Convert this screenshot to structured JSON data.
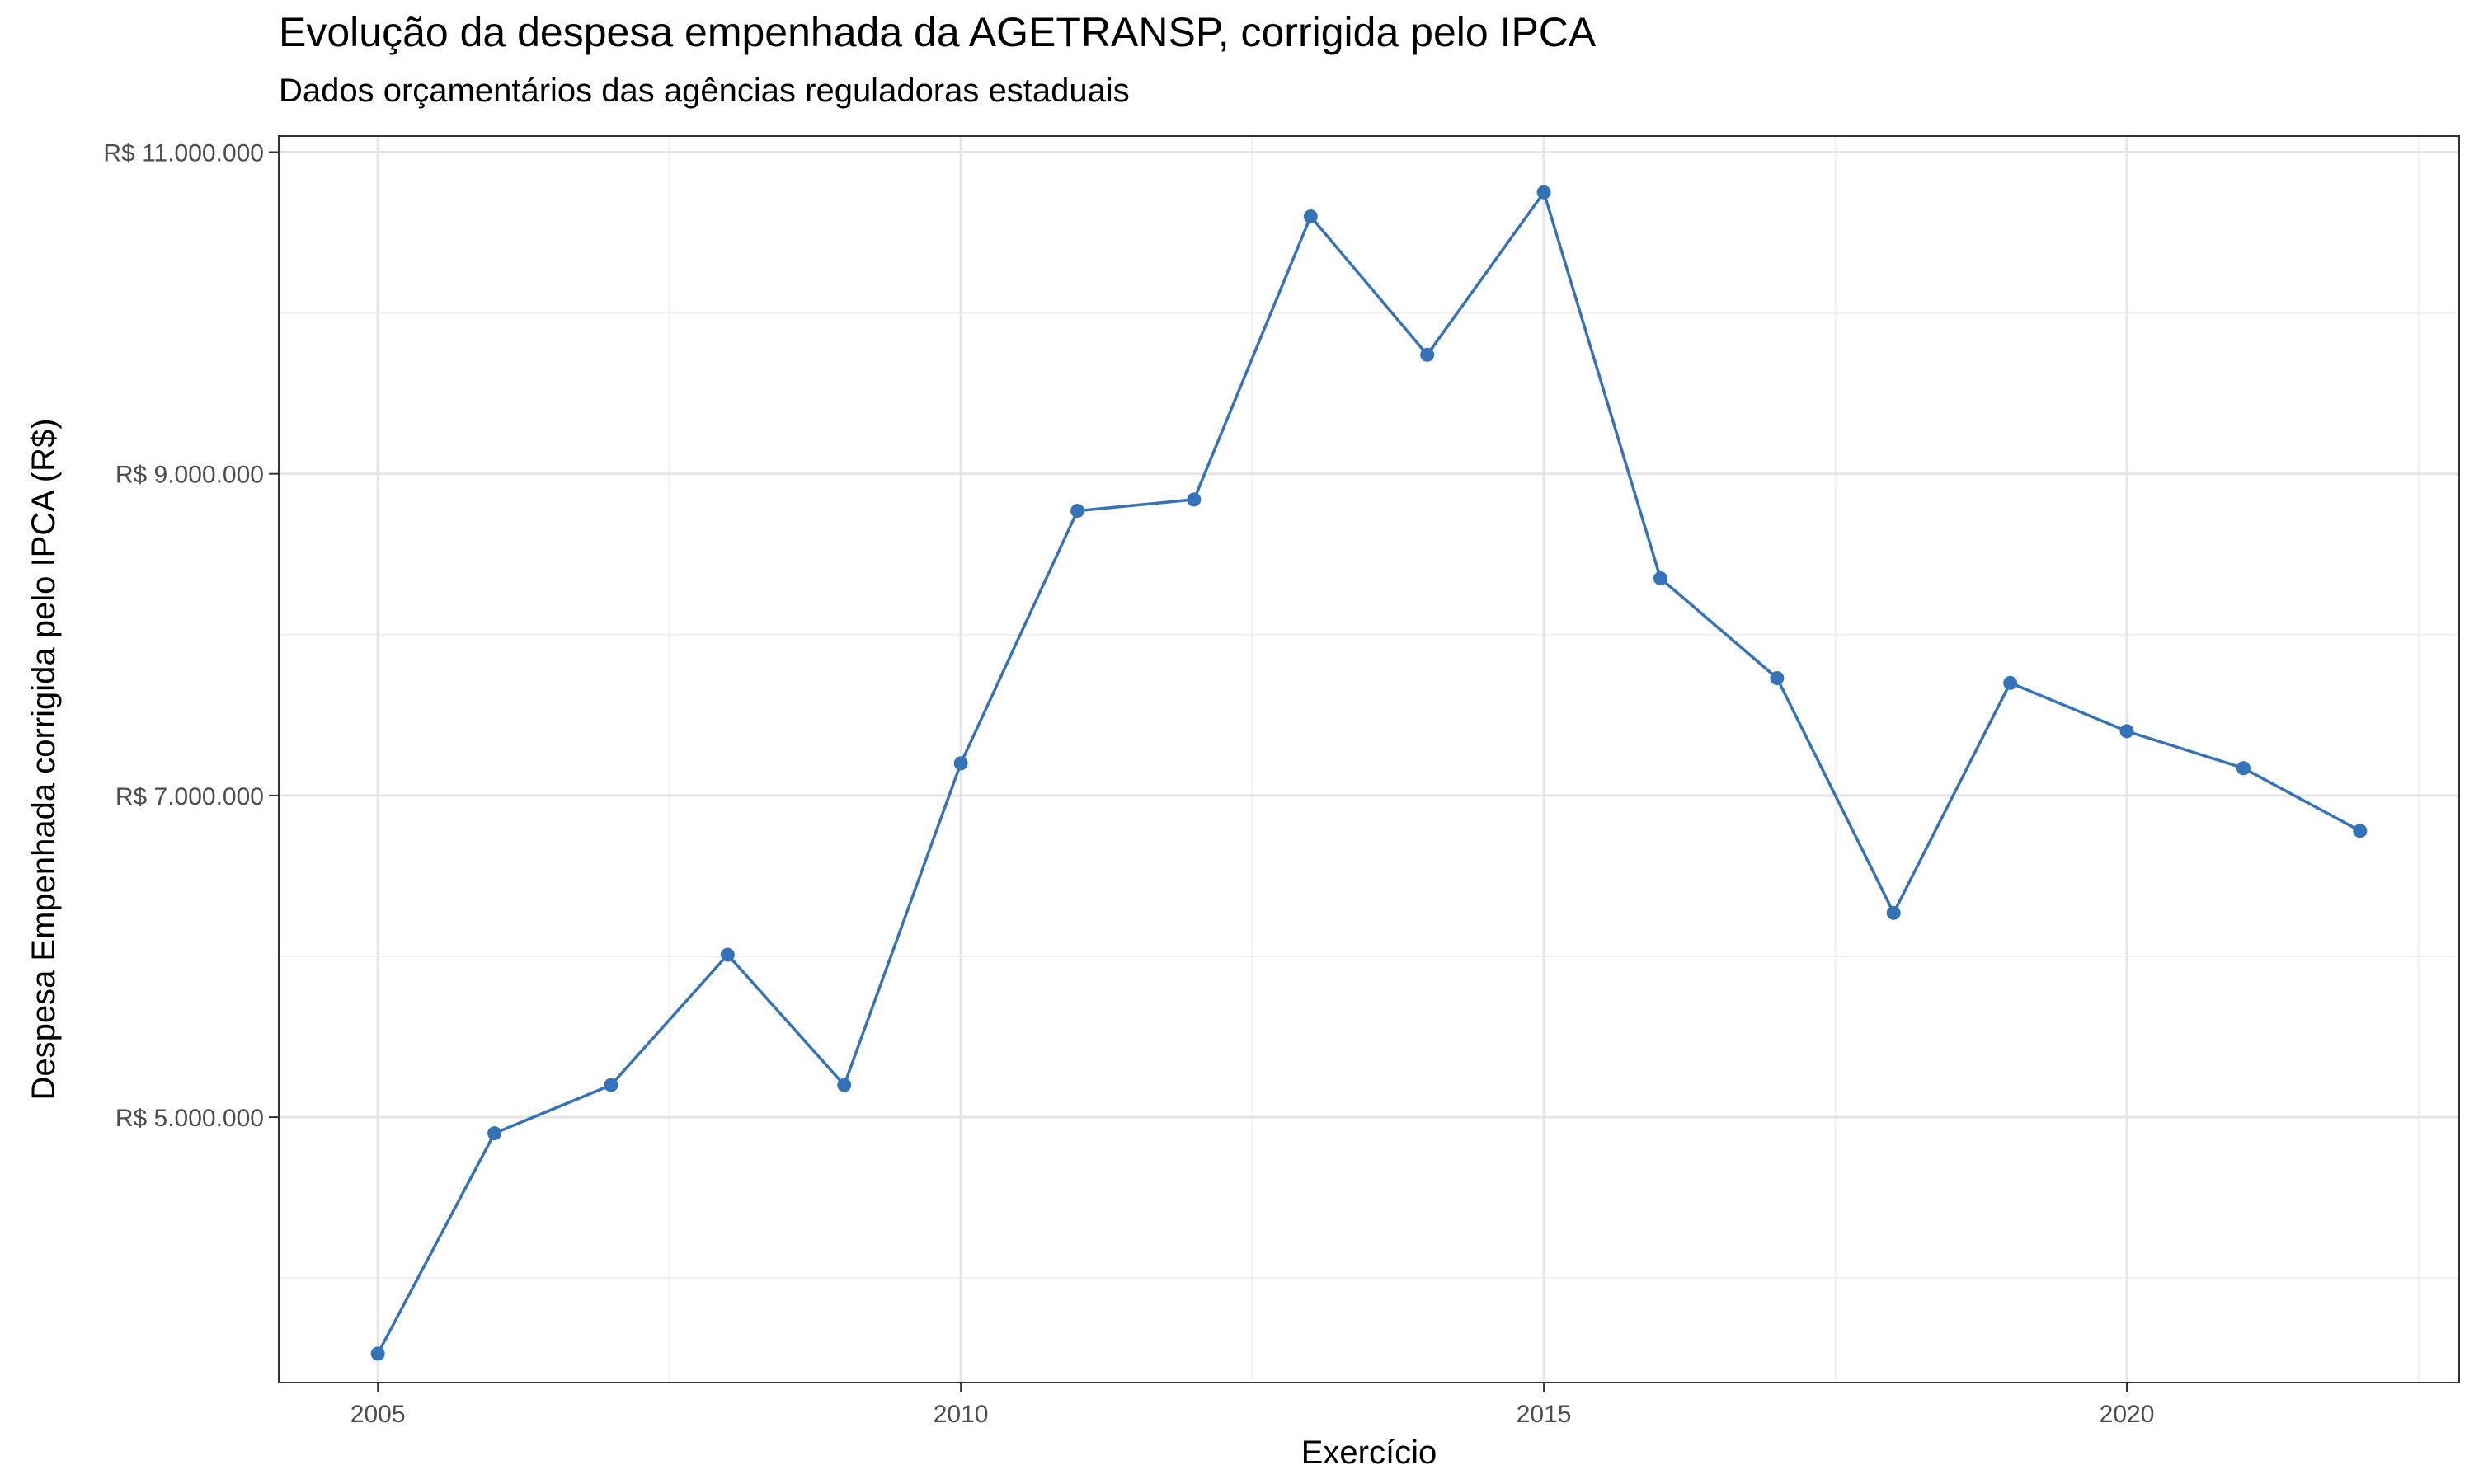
{
  "chart_data": {
    "type": "line",
    "title": "Evolução da despesa empenhada da AGETRANSP, corrigida pelo IPCA",
    "subtitle": "Dados orçamentários das agências reguladoras estaduais",
    "xlabel": "Exercício",
    "ylabel": "Despesa Empenhada corrigida pelo IPCA (R$)",
    "x_ticks": [
      2005,
      2010,
      2015,
      2020
    ],
    "y_ticks": [
      {
        "value": 5000000,
        "label": "R$ 5.000.000"
      },
      {
        "value": 7000000,
        "label": "R$ 7.000.000"
      },
      {
        "value": 9000000,
        "label": "R$ 9.000.000"
      },
      {
        "value": 11000000,
        "label": "R$ 11.000.000"
      }
    ],
    "xlim": [
      2004.15,
      2022.85
    ],
    "ylim": [
      3350000,
      11100000
    ],
    "grid": true,
    "color": "#3473ba",
    "x": [
      2005,
      2006,
      2007,
      2008,
      2009,
      2010,
      2011,
      2012,
      2013,
      2014,
      2015,
      2016,
      2017,
      2018,
      2019,
      2020,
      2021,
      2022
    ],
    "values": [
      3530000,
      4900000,
      5200000,
      6010000,
      5200000,
      7200000,
      8770000,
      8840000,
      10600000,
      9740000,
      10750000,
      8350000,
      7730000,
      6270000,
      7700000,
      7400000,
      7170000,
      6780000
    ]
  }
}
